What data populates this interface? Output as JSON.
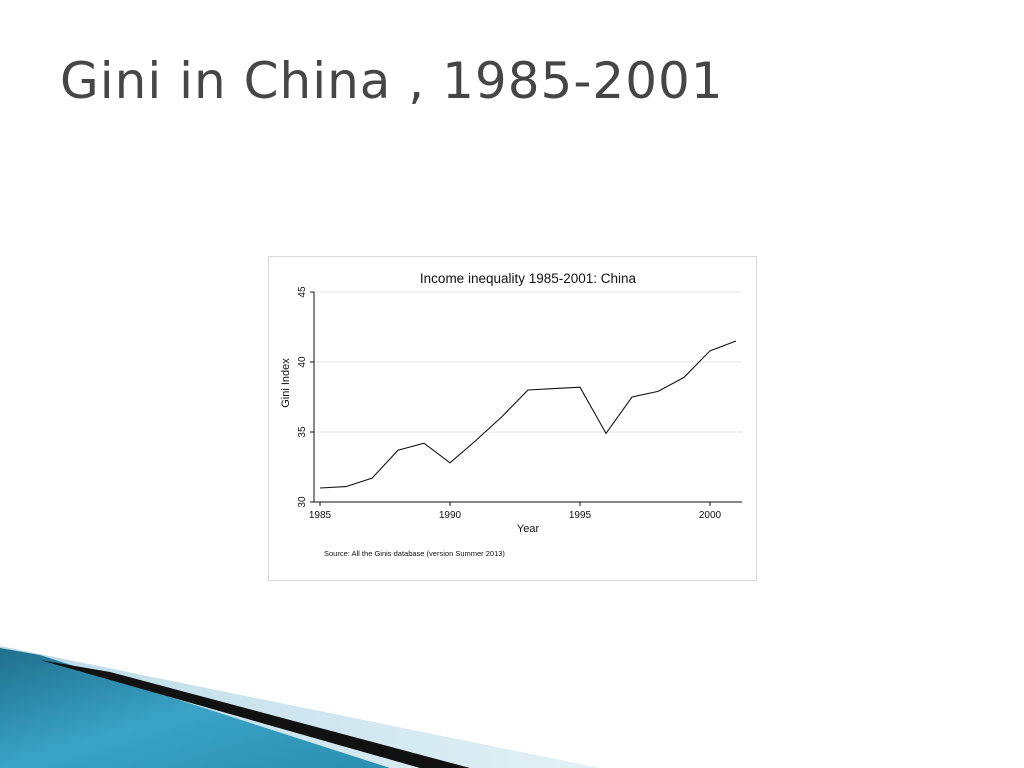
{
  "slide": {
    "title": "Gini in China , 1985-2001"
  },
  "colors": {
    "title_text": "#464646",
    "line": "#111111",
    "grid": "#e6e6e6",
    "decor_teal": "#2a8fb0",
    "decor_light": "#cfe6ef"
  },
  "chart_data": {
    "type": "line",
    "title": "Income inequality 1985-2001: China",
    "xlabel": "Year",
    "ylabel": "Gini Index",
    "xlim": [
      1985,
      2001
    ],
    "ylim": [
      30,
      45
    ],
    "xticks": [
      1985,
      1990,
      1995,
      2000
    ],
    "yticks": [
      30,
      35,
      40,
      45
    ],
    "grid": true,
    "legend": "none",
    "source": "Source:  All the Ginis database (version Summer 2013)",
    "series": [
      {
        "x": [
          1985,
          1986,
          1987,
          1988,
          1989,
          1990,
          1991,
          1992,
          1993,
          1994,
          1995,
          1996,
          1997,
          1998,
          1999,
          2000,
          2001
        ],
        "y": [
          31.0,
          31.1,
          31.7,
          33.7,
          34.2,
          32.8,
          34.4,
          36.1,
          38.0,
          38.1,
          38.2,
          34.9,
          37.5,
          37.9,
          38.9,
          40.8,
          41.5
        ]
      }
    ]
  }
}
